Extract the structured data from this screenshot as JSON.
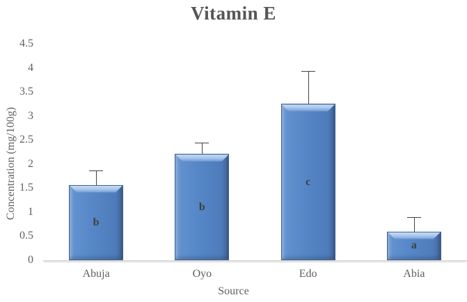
{
  "chart_data": {
    "type": "bar",
    "title": "Vitamin E",
    "xlabel": "Source",
    "ylabel": "Concentration (mg/100g)",
    "categories": [
      "Abuja",
      "Oyo",
      "Edo",
      "Abia"
    ],
    "values": [
      1.57,
      2.21,
      3.25,
      0.6
    ],
    "error_plus": [
      0.3,
      0.24,
      0.68,
      0.3
    ],
    "bar_letters": [
      "b",
      "b",
      "c",
      "a"
    ],
    "ylim": [
      0,
      4.5
    ],
    "yticks": [
      0,
      0.5,
      1,
      1.5,
      2,
      2.5,
      3,
      3.5,
      4,
      4.5
    ],
    "grid": false,
    "legend": "none",
    "colors": {
      "bar_fill": "#5586c6",
      "bar_border": "#3a6096",
      "bar_bevel_highlight": "#c9ddf4",
      "error_bar": "#404040",
      "axis_line": "#d9d9d9",
      "title_text": "#555555",
      "tick_text": "#5f5f5f"
    }
  }
}
